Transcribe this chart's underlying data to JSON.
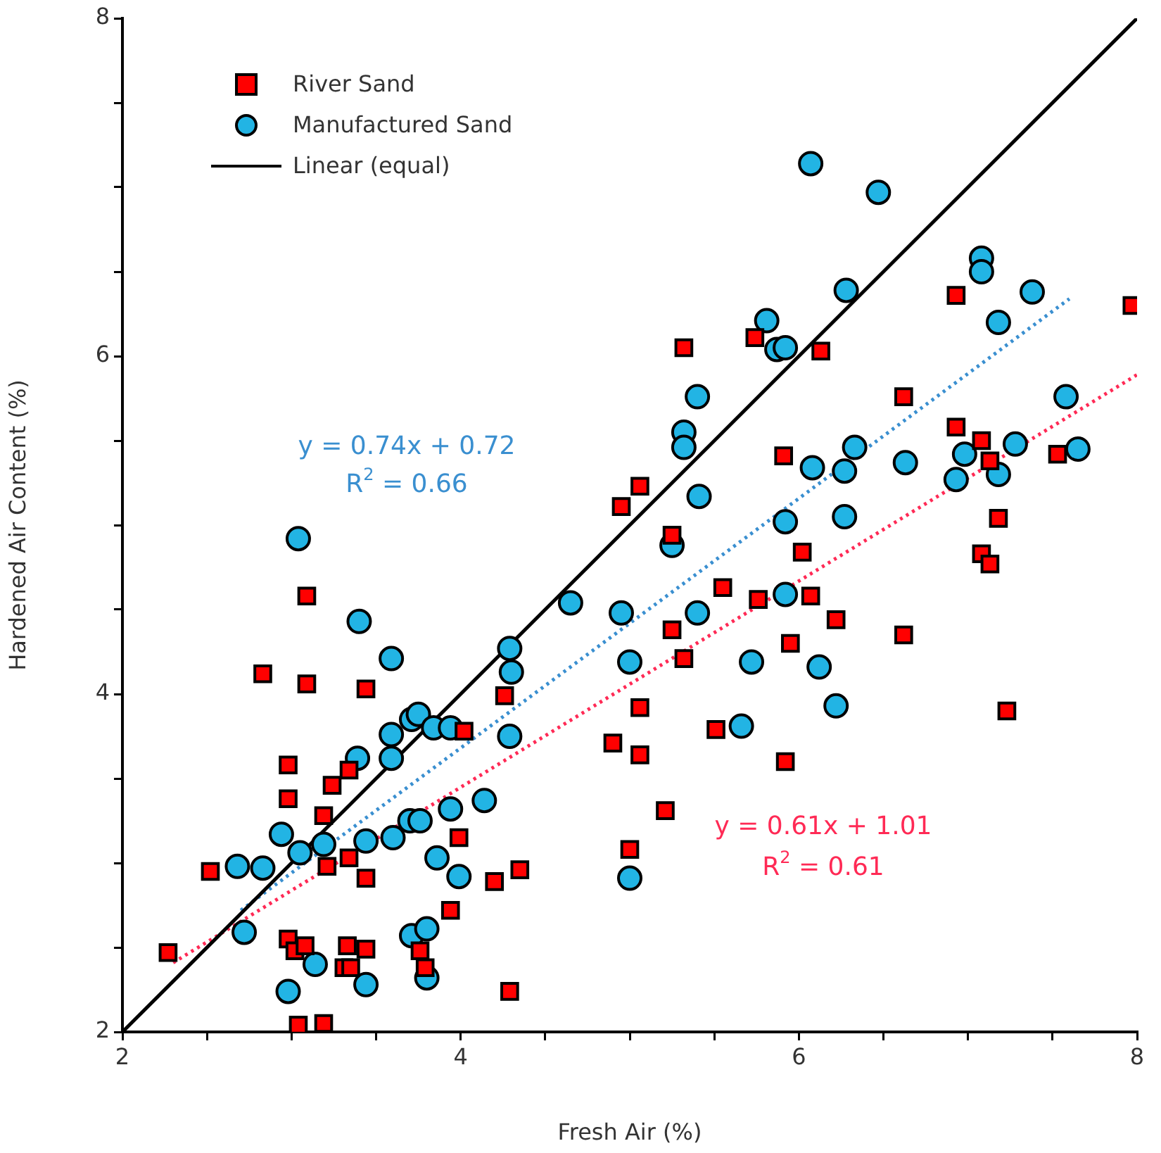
{
  "chart_data": {
    "type": "scatter",
    "xlabel": "Fresh Air (%)",
    "ylabel": "Hardened Air Content (%)",
    "xlim": [
      2,
      8
    ],
    "ylim": [
      2,
      8
    ],
    "xticks": [
      2,
      {
        "value": 2.5,
        "label": null
      },
      {
        "value": 3,
        "label": null
      },
      {
        "value": 3.5,
        "label": null
      },
      4,
      {
        "value": 4.5,
        "label": null
      },
      {
        "value": 5,
        "label": null
      },
      {
        "value": 5.5,
        "label": null
      },
      6,
      {
        "value": 6.5,
        "label": null
      },
      {
        "value": 7,
        "label": null
      },
      {
        "value": 7.5,
        "label": null
      },
      8
    ],
    "yticks": [
      2,
      {
        "value": 2.5,
        "label": null
      },
      {
        "value": 3,
        "label": null
      },
      {
        "value": 3.5,
        "label": null
      },
      4,
      {
        "value": 4.5,
        "label": null
      },
      {
        "value": 5,
        "label": null
      },
      {
        "value": 5.5,
        "label": null
      },
      6,
      {
        "value": 6.5,
        "label": null
      },
      {
        "value": 7,
        "label": null
      },
      {
        "value": 7.5,
        "label": null
      },
      8
    ],
    "grid": false,
    "legend": "top left",
    "series": [
      {
        "name": "River Sand",
        "marker": "square",
        "color": "#ff0000",
        "x": [
          2.27,
          2.52,
          2.83,
          3.09,
          3.09,
          3.44,
          4.26,
          4.02,
          2.98,
          3.34,
          3.24,
          2.98,
          3.19,
          3.99,
          3.21,
          3.34,
          3.44,
          3.94,
          4.2,
          4.35,
          2.98,
          3.02,
          3.08,
          3.33,
          3.44,
          3.31,
          3.35,
          3.76,
          3.79,
          4.29,
          3.04,
          3.19,
          5.32,
          5.74,
          6.13,
          6.93,
          7.97,
          6.62,
          6.93,
          7.08,
          7.13,
          7.53,
          5.91,
          5.06,
          4.95,
          5.25,
          6.02,
          7.18,
          7.08,
          7.13,
          5.55,
          5.76,
          6.07,
          6.22,
          5.25,
          5.32,
          5.95,
          6.62,
          5.06,
          4.9,
          5.06,
          5.51,
          5.92,
          7.23,
          5.21,
          5.0
        ],
        "values": [
          2.47,
          2.95,
          4.12,
          4.58,
          4.06,
          4.03,
          3.99,
          3.78,
          3.58,
          3.55,
          3.46,
          3.38,
          3.28,
          3.15,
          2.98,
          3.03,
          2.91,
          2.72,
          2.89,
          2.96,
          2.55,
          2.48,
          2.51,
          2.51,
          2.49,
          2.38,
          2.38,
          2.48,
          2.38,
          2.24,
          2.04,
          2.05,
          6.05,
          6.11,
          6.03,
          6.36,
          6.3,
          5.76,
          5.58,
          5.5,
          5.38,
          5.42,
          5.41,
          5.23,
          5.11,
          4.94,
          4.84,
          5.04,
          4.83,
          4.77,
          4.63,
          4.56,
          4.58,
          4.44,
          4.38,
          4.21,
          4.3,
          4.35,
          3.92,
          3.71,
          3.64,
          3.79,
          3.6,
          3.9,
          3.31,
          3.08
        ]
      },
      {
        "name": "Manufactured Sand",
        "marker": "circle",
        "color": "#22b4e4",
        "x": [
          3.04,
          3.4,
          3.59,
          4.29,
          4.3,
          4.29,
          3.59,
          3.59,
          3.39,
          3.71,
          3.75,
          3.84,
          3.94,
          2.94,
          3.05,
          3.19,
          3.44,
          3.6,
          3.7,
          3.76,
          3.94,
          4.14,
          3.86,
          3.99,
          2.68,
          2.83,
          2.72,
          3.71,
          3.8,
          3.14,
          3.44,
          3.8,
          2.98,
          4.65,
          4.95,
          5.25,
          5.4,
          5.0,
          5.72,
          6.12,
          6.22,
          5.92,
          5.66,
          5.0,
          5.92,
          6.27,
          6.07,
          6.47,
          7.08,
          7.08,
          7.38,
          7.18,
          6.28,
          5.81,
          5.87,
          5.92,
          5.4,
          5.32,
          5.32,
          5.41,
          6.33,
          6.08,
          6.27,
          6.63,
          6.98,
          6.93,
          7.18,
          7.28,
          7.58,
          7.65
        ],
        "values": [
          4.92,
          4.43,
          4.21,
          4.27,
          4.13,
          3.75,
          3.76,
          3.62,
          3.62,
          3.85,
          3.88,
          3.8,
          3.8,
          3.17,
          3.06,
          3.11,
          3.13,
          3.15,
          3.25,
          3.25,
          3.32,
          3.37,
          3.03,
          2.92,
          2.98,
          2.97,
          2.59,
          2.57,
          2.61,
          2.4,
          2.28,
          2.32,
          2.24,
          4.54,
          4.48,
          4.88,
          4.48,
          4.19,
          4.19,
          4.16,
          3.93,
          4.59,
          3.81,
          2.91,
          5.02,
          5.05,
          7.14,
          6.97,
          6.58,
          6.5,
          6.38,
          6.2,
          6.39,
          6.21,
          6.04,
          6.05,
          5.76,
          5.55,
          5.46,
          5.17,
          5.46,
          5.34,
          5.32,
          5.37,
          5.42,
          5.27,
          5.3,
          5.48,
          5.76,
          5.45
        ]
      },
      {
        "name": "Linear (equal)",
        "type": "line",
        "marker": "none",
        "line_style": "solid",
        "color": "#000000",
        "x": [
          2,
          8
        ],
        "values": [
          2,
          8
        ]
      },
      {
        "type": "line",
        "marker": "none",
        "line_style": "dotted",
        "color": "#3a8fd0",
        "x": [
          2.7,
          7.6
        ],
        "values": [
          2.72,
          6.34
        ]
      },
      {
        "type": "line",
        "marker": "none",
        "line_style": "dotted",
        "color": "#ff2a55",
        "x": [
          2.3,
          8
        ],
        "values": [
          2.41,
          5.89
        ]
      }
    ],
    "annotations": [
      "y = 0.74x + 0.72",
      "R$^{2}$ = 0.66",
      "y = 0.61x + 1.01",
      "R$^{2}$ = 0.61"
    ]
  }
}
